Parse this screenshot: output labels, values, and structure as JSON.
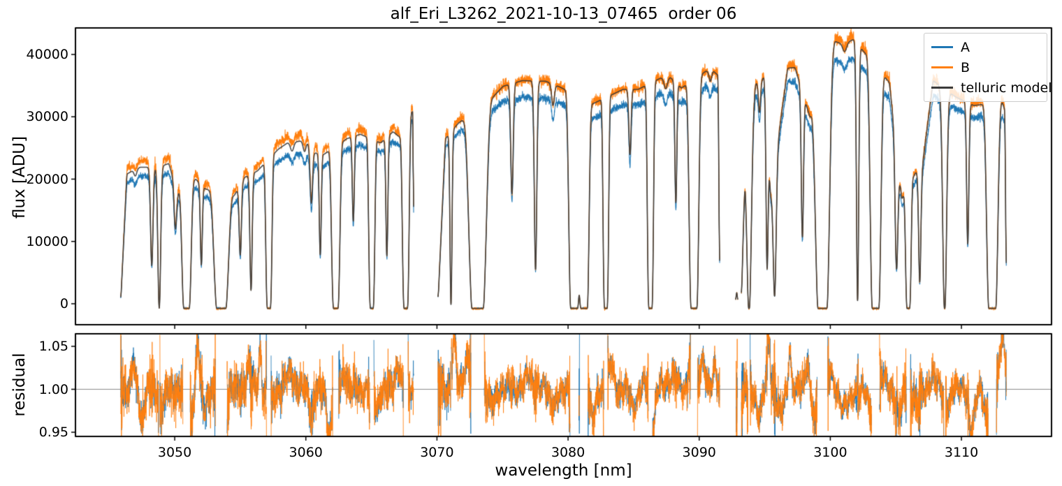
{
  "chart_data": {
    "type": "line",
    "title": "alf_Eri_L3262_2021-10-13_07465  order 06",
    "xlabel": "wavelength [nm]",
    "xlim": [
      3042.43,
      3116.87
    ],
    "xticks": [
      {
        "v": 3050,
        "label": "3050"
      },
      {
        "v": 3060,
        "label": "3060"
      },
      {
        "v": 3070,
        "label": "3070"
      },
      {
        "v": 3080,
        "label": "3080"
      },
      {
        "v": 3090,
        "label": "3090"
      },
      {
        "v": 3100,
        "label": "3100"
      },
      {
        "v": 3110,
        "label": "3110"
      }
    ],
    "panels": [
      {
        "name": "flux",
        "ylabel": "flux [ADU]",
        "ylim": [
          -3360,
          44258
        ],
        "yticks": [
          {
            "v": 0,
            "label": "0"
          },
          {
            "v": 10000,
            "label": "10000"
          },
          {
            "v": 20000,
            "label": "20000"
          },
          {
            "v": 30000,
            "label": "30000"
          },
          {
            "v": 40000,
            "label": "40000"
          }
        ],
        "grid": false
      },
      {
        "name": "residual",
        "ylabel": "residual",
        "ylim": [
          0.945,
          1.0646
        ],
        "refline": 1.0,
        "yticks": [
          {
            "v": 0.95,
            "label": "0.95"
          },
          {
            "v": 1.0,
            "label": "1.00"
          },
          {
            "v": 1.05,
            "label": "1.05"
          }
        ],
        "grid": false
      }
    ],
    "legend": [
      {
        "label": "A",
        "color": "#1f77b4"
      },
      {
        "label": "B",
        "color": "#ff7f0e"
      },
      {
        "label": "telluric model",
        "color": "#3b3b3b"
      }
    ],
    "legend_position": "upper right",
    "series": {
      "A": {
        "color": "#1f77b4",
        "noise_k": 1.7,
        "ratio_nodes": [
          [
            3045,
            0.935
          ],
          [
            3055,
            0.925
          ],
          [
            3060,
            0.92
          ],
          [
            3068,
            0.95
          ],
          [
            3072,
            0.95
          ],
          [
            3076,
            0.925
          ],
          [
            3087,
            0.928
          ],
          [
            3091,
            0.93
          ],
          [
            3095,
            0.95
          ],
          [
            3101,
            0.93
          ],
          [
            3107,
            0.93
          ],
          [
            3110,
            0.945
          ],
          [
            3113.5,
            0.93
          ]
        ]
      },
      "B": {
        "color": "#ff7f0e",
        "noise_k": 2.4,
        "ratio_nodes": [
          [
            3045,
            1.045
          ],
          [
            3060,
            1.04
          ],
          [
            3068,
            1.02
          ],
          [
            3071,
            1.02
          ],
          [
            3075,
            1.005
          ],
          [
            3088,
            1.005
          ],
          [
            3091,
            1.0
          ],
          [
            3094,
            1.01
          ],
          [
            3101,
            1.015
          ],
          [
            3108,
            1.01
          ],
          [
            3113.5,
            1.02
          ]
        ]
      },
      "model": {
        "color": "#3b3b3b"
      }
    },
    "segments": [
      {
        "continuum": [
          [
            3045.88,
            150
          ],
          [
            3046.35,
            20800
          ],
          [
            3046.75,
            21300
          ],
          [
            3047.35,
            21900
          ],
          [
            3048.05,
            21900
          ],
          [
            3049.0,
            22100
          ],
          [
            3049.55,
            22500
          ],
          [
            3050.2,
            17800
          ],
          [
            3051.6,
            20000
          ],
          [
            3052.35,
            18400
          ],
          [
            3054.55,
            17400
          ],
          [
            3055.35,
            20300
          ],
          [
            3056.3,
            21300
          ],
          [
            3057.9,
            24800
          ],
          [
            3058.6,
            25800
          ],
          [
            3059.6,
            26100
          ],
          [
            3060.15,
            25800
          ],
          [
            3060.7,
            24200
          ],
          [
            3061.4,
            24000
          ],
          [
            3063.15,
            26500
          ],
          [
            3064.15,
            27200
          ],
          [
            3065.7,
            25800
          ],
          [
            3066.65,
            27600
          ],
          [
            3067.3,
            26500
          ],
          [
            3068.05,
            30800
          ],
          [
            3068.18,
            30800
          ],
          [
            3068.22,
            300
          ]
        ],
        "lines": [
          [
            3047.0,
            0.05,
            0.1
          ],
          [
            3048.25,
            0.75,
            0.09
          ],
          [
            3048.82,
            1.1,
            0.1
          ],
          [
            3050.05,
            0.38,
            0.09
          ],
          [
            3050.9,
            1.2,
            0.33,
            4
          ],
          [
            3052.03,
            0.72,
            0.07
          ],
          [
            3053.55,
            1.2,
            0.52,
            4
          ],
          [
            3055.0,
            0.62,
            0.08
          ],
          [
            3055.82,
            0.94,
            0.08
          ],
          [
            3057.18,
            1.15,
            0.22,
            4
          ],
          [
            3058.95,
            0.055,
            0.12
          ],
          [
            3059.9,
            0.06,
            0.1
          ],
          [
            3060.42,
            0.37,
            0.09
          ],
          [
            3061.1,
            0.72,
            0.07
          ],
          [
            3062.28,
            1.15,
            0.3,
            4
          ],
          [
            3063.62,
            0.54,
            0.07
          ],
          [
            3065.03,
            1.12,
            0.22,
            4
          ],
          [
            3066.18,
            0.76,
            0.07
          ],
          [
            3067.62,
            1.15,
            0.24,
            4
          ]
        ]
      },
      {
        "continuum": [
          [
            3070.08,
            200
          ],
          [
            3070.65,
            26500
          ],
          [
            3071.65,
            29000
          ],
          [
            3074.2,
            33000
          ],
          [
            3075.05,
            34900
          ],
          [
            3076.5,
            35800
          ],
          [
            3078.3,
            35700
          ],
          [
            3079.35,
            34800
          ],
          [
            3081.9,
            32100
          ],
          [
            3084.2,
            34400
          ],
          [
            3085.35,
            34400
          ],
          [
            3087.05,
            36200
          ],
          [
            3087.8,
            36300
          ],
          [
            3088.65,
            34600
          ],
          [
            3090.5,
            37300
          ],
          [
            3091.1,
            37300
          ],
          [
            3091.45,
            36600
          ],
          [
            3091.56,
            300
          ]
        ],
        "lines": [
          [
            3071.07,
            1.1,
            0.07
          ],
          [
            3073.1,
            1.2,
            0.62,
            4
          ],
          [
            3075.72,
            0.52,
            0.09
          ],
          [
            3077.52,
            0.88,
            0.09
          ],
          [
            3078.85,
            0.1,
            0.1
          ],
          [
            3080.45,
            1.25,
            0.36,
            4
          ],
          [
            3081.25,
            1.25,
            0.32,
            4
          ],
          [
            3082.88,
            1.15,
            0.2,
            4
          ],
          [
            3084.72,
            0.32,
            0.08
          ],
          [
            3086.28,
            1.15,
            0.22,
            4
          ],
          [
            3087.45,
            0.05,
            0.12
          ],
          [
            3088.22,
            0.58,
            0.07
          ],
          [
            3089.6,
            1.2,
            0.34,
            4
          ],
          [
            3090.85,
            0.045,
            0.09
          ]
        ]
      },
      {
        "continuum": [
          [
            3092.78,
            100
          ],
          [
            3092.86,
            2400
          ],
          [
            3092.94,
            100
          ]
        ],
        "lines": []
      },
      {
        "continuum": [
          [
            3093.22,
            150
          ],
          [
            3093.5,
            23200
          ],
          [
            3094.3,
            35400
          ],
          [
            3094.95,
            36300
          ],
          [
            3095.45,
            17300
          ],
          [
            3096.75,
            37800
          ],
          [
            3097.3,
            37900
          ],
          [
            3098.45,
            29900
          ],
          [
            3100.35,
            42100
          ],
          [
            3101.0,
            41600
          ],
          [
            3101.75,
            42400
          ],
          [
            3102.45,
            40700
          ],
          [
            3104.5,
            35500
          ],
          [
            3105.45,
            16800
          ],
          [
            3106.5,
            21000
          ],
          [
            3107.0,
            21800
          ],
          [
            3107.85,
            35800
          ],
          [
            3109.55,
            33200
          ],
          [
            3110.95,
            31800
          ],
          [
            3113.1,
            32400
          ],
          [
            3113.32,
            31000
          ],
          [
            3113.42,
            400
          ]
        ],
        "lines": [
          [
            3093.8,
            1.1,
            0.16
          ],
          [
            3094.6,
            0.15,
            0.08
          ],
          [
            3095.18,
            0.85,
            0.07
          ],
          [
            3095.75,
            0.97,
            0.11
          ],
          [
            3097.87,
            0.72,
            0.08
          ],
          [
            3099.4,
            1.2,
            0.5,
            4
          ],
          [
            3101.1,
            0.03,
            0.14
          ],
          [
            3102.08,
            1.05,
            0.08
          ],
          [
            3103.45,
            1.2,
            0.38,
            4
          ],
          [
            3105.05,
            0.8,
            0.1
          ],
          [
            3105.95,
            1.15,
            0.2,
            4
          ],
          [
            3106.82,
            0.88,
            0.08
          ],
          [
            3108.72,
            1.1,
            0.14
          ],
          [
            3110.48,
            0.74,
            0.08
          ],
          [
            3112.35,
            1.2,
            0.4,
            4
          ]
        ]
      }
    ],
    "residual_features": [
      [
        3046.85,
        0.03,
        0.12
      ],
      [
        3047.5,
        -0.035,
        0.15
      ],
      [
        3049.0,
        -0.02,
        0.2
      ],
      [
        3051.05,
        -0.04,
        0.25
      ],
      [
        3051.75,
        0.06,
        0.1
      ],
      [
        3052.3,
        -0.03,
        0.12
      ],
      [
        3055.6,
        0.025,
        0.18
      ],
      [
        3056.5,
        0.05,
        0.1
      ],
      [
        3057.3,
        -0.025,
        0.2
      ],
      [
        3058.8,
        0.02,
        0.3
      ],
      [
        3060.4,
        -0.03,
        0.15
      ],
      [
        3061.8,
        -0.05,
        0.2
      ],
      [
        3063.0,
        0.02,
        0.2
      ],
      [
        3065.4,
        -0.025,
        0.15
      ],
      [
        3067.0,
        0.03,
        0.2
      ],
      [
        3071.3,
        0.055,
        0.15
      ],
      [
        3072.3,
        0.04,
        0.2
      ],
      [
        3074.2,
        -0.02,
        0.25
      ],
      [
        3077.0,
        0.015,
        0.3
      ],
      [
        3079.0,
        -0.015,
        0.3
      ],
      [
        3080.6,
        -0.04,
        0.25
      ],
      [
        3081.9,
        -0.035,
        0.2
      ],
      [
        3083.3,
        0.03,
        0.15
      ],
      [
        3085.0,
        -0.02,
        0.25
      ],
      [
        3086.5,
        -0.045,
        0.12
      ],
      [
        3088.0,
        0.02,
        0.25
      ],
      [
        3089.3,
        0.04,
        0.15
      ],
      [
        3090.3,
        0.035,
        0.2
      ],
      [
        3091.2,
        0.02,
        0.15
      ],
      [
        3094.6,
        -0.03,
        0.2
      ],
      [
        3095.3,
        0.06,
        0.12
      ],
      [
        3096.2,
        -0.028,
        0.25
      ],
      [
        3096.9,
        0.05,
        0.1
      ],
      [
        3098.2,
        0.03,
        0.15
      ],
      [
        3098.85,
        -0.04,
        0.2
      ],
      [
        3100.0,
        0.02,
        0.15
      ],
      [
        3101.2,
        -0.02,
        0.4
      ],
      [
        3103.0,
        -0.025,
        0.2
      ],
      [
        3104.0,
        0.015,
        0.2
      ],
      [
        3105.2,
        -0.035,
        0.18
      ],
      [
        3106.6,
        -0.02,
        0.2
      ],
      [
        3107.8,
        0.012,
        0.3
      ],
      [
        3109.0,
        -0.02,
        0.2
      ],
      [
        3110.0,
        0.008,
        0.25
      ],
      [
        3110.75,
        -0.05,
        0.22
      ],
      [
        3111.4,
        0.006,
        0.2
      ],
      [
        3112.05,
        -0.048,
        0.28
      ],
      [
        3113.1,
        0.055,
        0.2
      ]
    ]
  }
}
